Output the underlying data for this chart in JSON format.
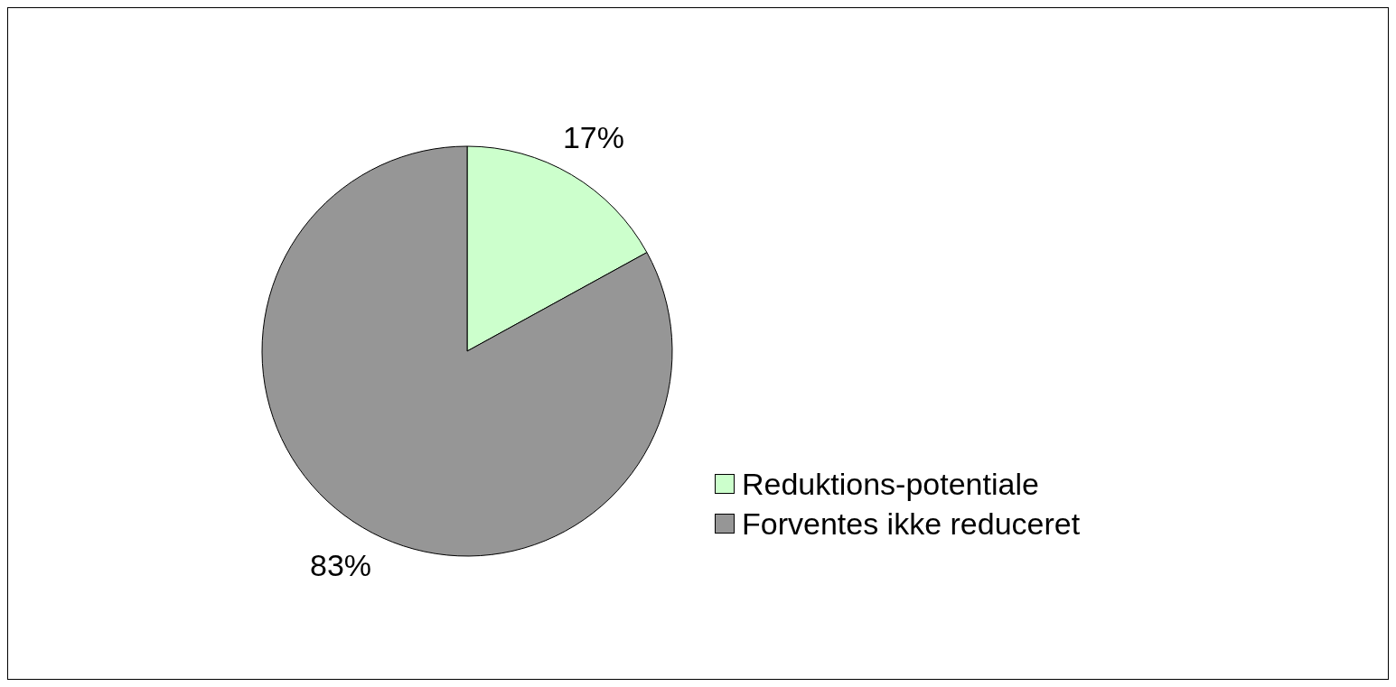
{
  "chart_data": {
    "type": "pie",
    "categories": [
      "Reduktions-potentiale",
      "Forventes ikke reduceret"
    ],
    "values": [
      17,
      83
    ],
    "colors": [
      "#ccffcc",
      "#969696"
    ],
    "value_labels": [
      "17%",
      "83%"
    ],
    "legend": "right"
  }
}
